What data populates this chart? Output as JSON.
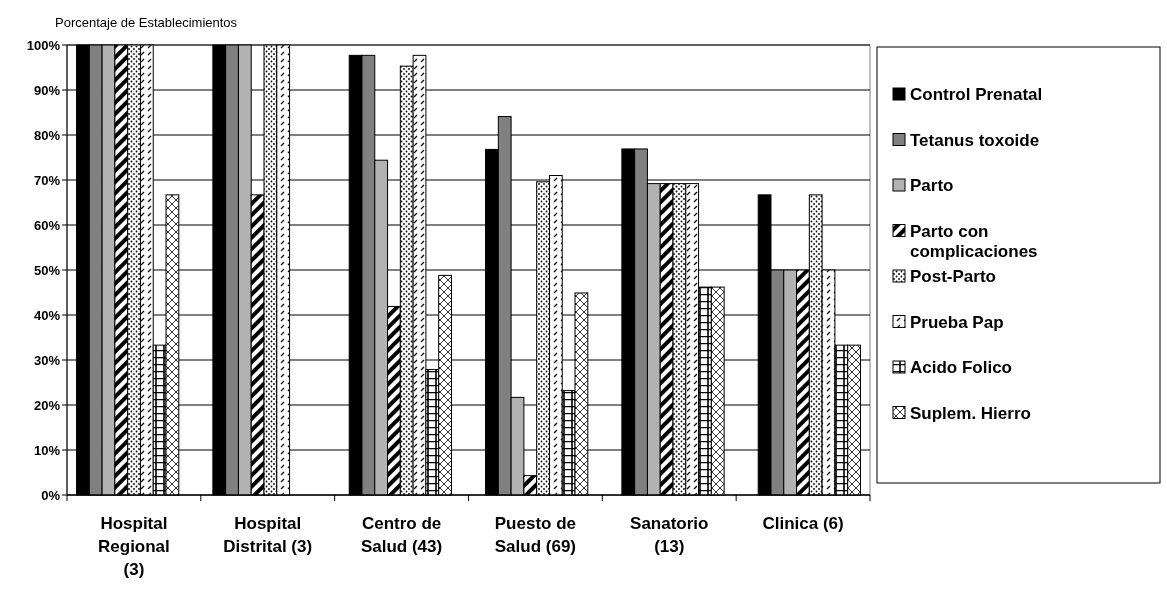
{
  "chart_data": {
    "type": "bar",
    "ylabel": "Porcentaje de Establecimientos",
    "categories": [
      "Hospital\nRegional\n(3)",
      "Hospital\nDistrital (3)",
      "Centro de\nSalud (43)",
      "Puesto de\nSalud (69)",
      "Sanatorio\n(13)",
      "Clinica (6)"
    ],
    "series": [
      {
        "name": "Control Prenatal",
        "color": "#000000",
        "values": [
          100,
          100,
          97.7,
          76.8,
          76.9,
          66.7
        ]
      },
      {
        "name": "Tetanus toxoide",
        "color": "#808080",
        "values": [
          100,
          100,
          97.7,
          84.1,
          76.9,
          50
        ]
      },
      {
        "name": "Parto",
        "color": "#b2b2b2",
        "values": [
          100,
          100,
          74.4,
          21.7,
          69.2,
          50
        ]
      },
      {
        "name": "Parto con\ncomplicaciones",
        "color": "#000000",
        "values": [
          100,
          66.7,
          41.9,
          4.3,
          69.2,
          50
        ]
      },
      {
        "name": "Post-Parto",
        "color": "#000000",
        "values": [
          100,
          100,
          95.3,
          69.6,
          69.2,
          66.7
        ]
      },
      {
        "name": "Prueba Pap",
        "color": "#000000",
        "values": [
          100,
          100,
          97.7,
          71,
          69.2,
          50
        ]
      },
      {
        "name": "Acido Folico",
        "color": "#000000",
        "values": [
          33.3,
          0,
          27.9,
          23.2,
          46.2,
          33.3
        ]
      },
      {
        "name": "Suplem. Hierro",
        "color": "#000000",
        "values": [
          66.7,
          0,
          48.8,
          44.9,
          46.2,
          33.3
        ]
      }
    ],
    "ylim": [
      0,
      100
    ],
    "yticks": [
      {
        "value": 0,
        "label": "0%"
      },
      {
        "value": 10,
        "label": "10%"
      },
      {
        "value": 20,
        "label": "20%"
      },
      {
        "value": 30,
        "label": "30%"
      },
      {
        "value": 40,
        "label": "40%"
      },
      {
        "value": 50,
        "label": "50%"
      },
      {
        "value": 60,
        "label": "60%"
      },
      {
        "value": 70,
        "label": "70%"
      },
      {
        "value": 80,
        "label": "80%"
      },
      {
        "value": 90,
        "label": "90%"
      },
      {
        "value": 100,
        "label": "100%"
      }
    ],
    "grid": "y",
    "legend": "right"
  }
}
